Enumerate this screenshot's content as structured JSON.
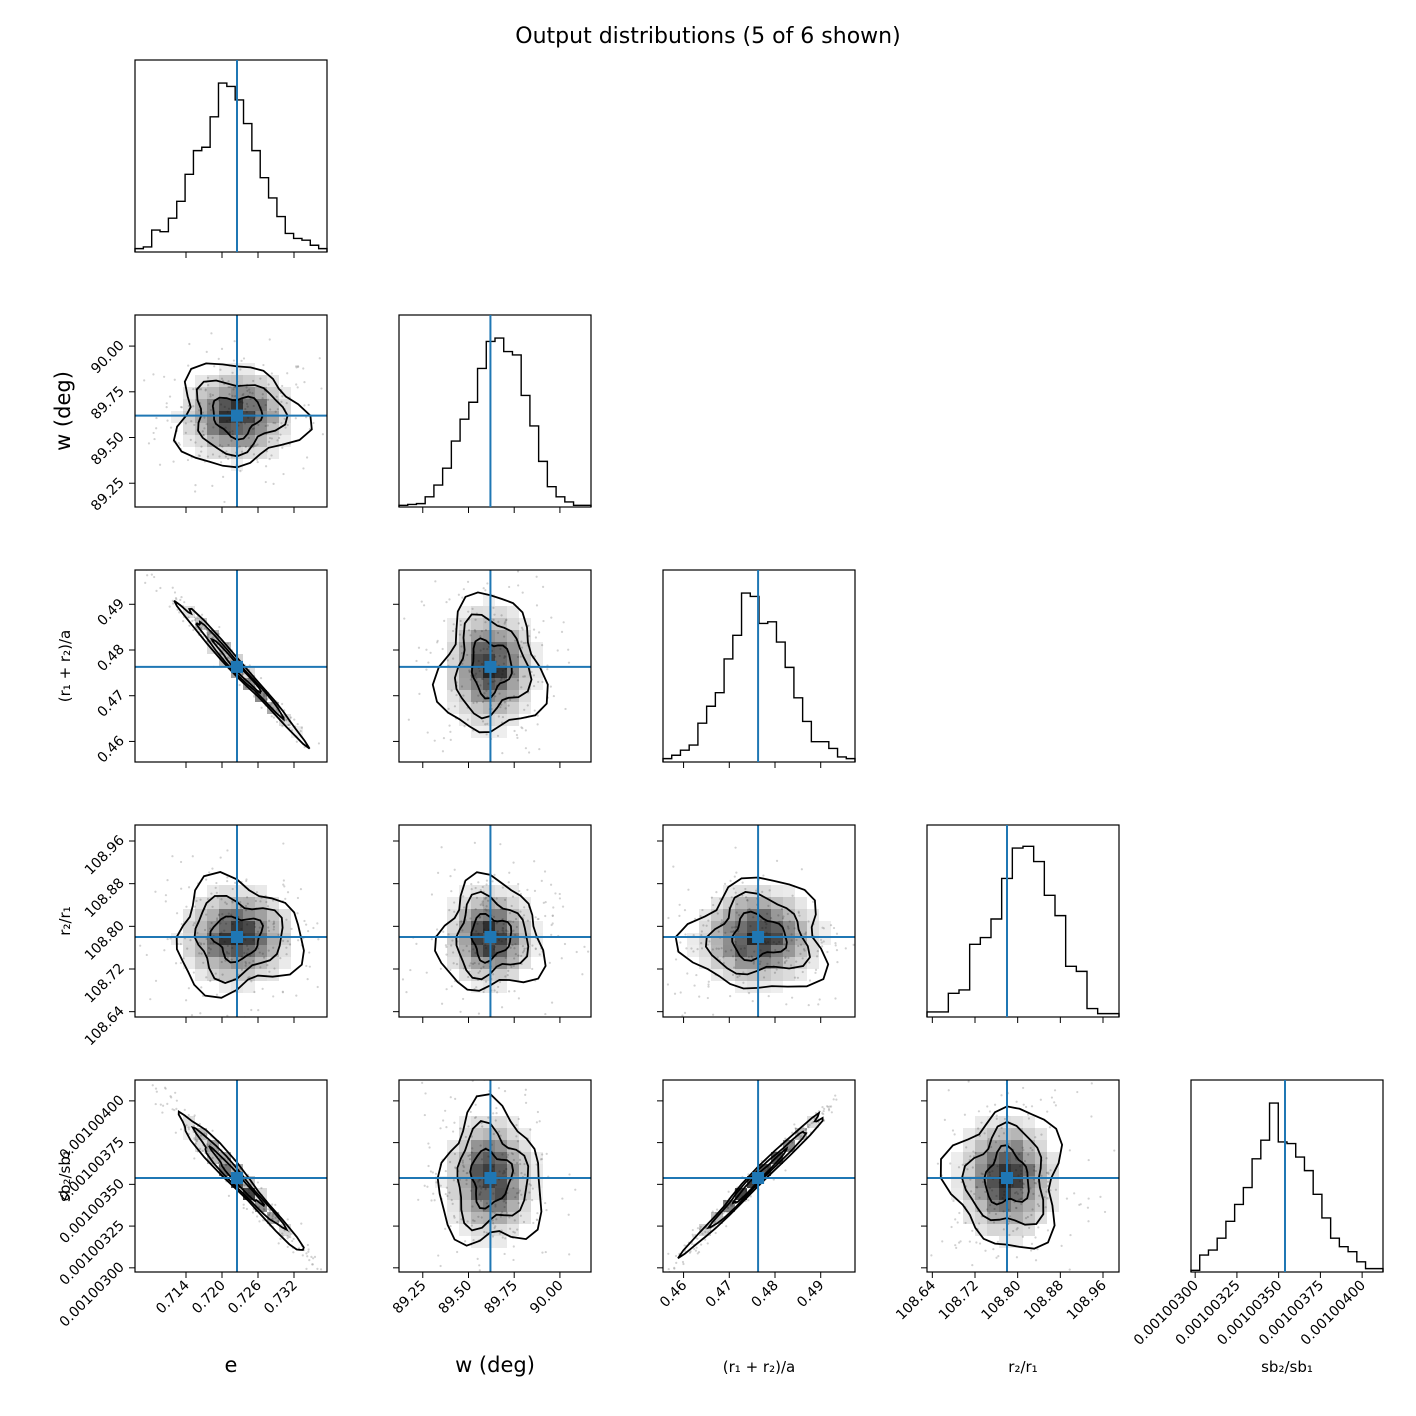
{
  "title": "Output distributions (5 of 6 shown)",
  "colors": {
    "truth_line": "#1f77b4",
    "hist_line": "#000000",
    "contour": "#000000",
    "density": "#000000"
  },
  "chart_data": {
    "type": "corner",
    "title": "Output distributions (5 of 6 shown)",
    "grid": false,
    "parameters": [
      {
        "key": "e",
        "label": "e",
        "ticks": [
          "0.714",
          "0.720",
          "0.726",
          "0.732"
        ],
        "tick_values": [
          0.714,
          0.72,
          0.726,
          0.732
        ],
        "range": [
          0.7055,
          0.7375
        ],
        "truth": 0.7225
      },
      {
        "key": "w",
        "label": "w (deg)",
        "ticks": [
          "89.25",
          "89.50",
          "89.75",
          "90.00"
        ],
        "tick_values": [
          89.25,
          89.5,
          89.75,
          90.0
        ],
        "range": [
          89.12,
          90.17
        ],
        "truth": 89.62
      },
      {
        "key": "r12a",
        "label": "(r₁ + r₂)/a",
        "ticks": [
          "0.46",
          "0.47",
          "0.48",
          "0.49"
        ],
        "tick_values": [
          0.46,
          0.47,
          0.48,
          0.49
        ],
        "range": [
          0.4555,
          0.4975
        ],
        "truth": 0.4763
      },
      {
        "key": "r2r1",
        "label": "r₂/r₁",
        "ticks": [
          "108.64",
          "108.72",
          "108.80",
          "108.88",
          "108.96"
        ],
        "tick_values": [
          108.64,
          108.72,
          108.8,
          108.88,
          108.96
        ],
        "range": [
          108.63,
          108.99
        ],
        "truth": 108.78
      },
      {
        "key": "sb2sb1",
        "label": "sb₂/sb₁",
        "ticks": [
          "0.00100300",
          "0.00100325",
          "0.00100350",
          "0.00100375",
          "0.00100400"
        ],
        "tick_values": [
          0.001003,
          0.00100325,
          0.0010035,
          0.00100375,
          0.001004
        ],
        "range": [
          0.001002975,
          0.001004125
        ],
        "truth": 0.001003538
      }
    ],
    "histograms": [
      {
        "param": "e",
        "heights": [
          0.02,
          0.03,
          0.13,
          0.12,
          0.2,
          0.3,
          0.46,
          0.6,
          0.62,
          0.8,
          1.0,
          0.98,
          0.9,
          0.76,
          0.6,
          0.44,
          0.32,
          0.21,
          0.11,
          0.08,
          0.07,
          0.04,
          0.02
        ]
      },
      {
        "param": "w",
        "heights": [
          0.01,
          0.015,
          0.02,
          0.06,
          0.13,
          0.23,
          0.39,
          0.52,
          0.62,
          0.82,
          0.98,
          1.0,
          0.92,
          0.9,
          0.66,
          0.48,
          0.27,
          0.12,
          0.06,
          0.03,
          0.01,
          0.01
        ]
      },
      {
        "param": "r12a",
        "heights": [
          0.02,
          0.04,
          0.07,
          0.1,
          0.23,
          0.33,
          0.41,
          0.61,
          0.75,
          1.0,
          0.98,
          0.82,
          0.83,
          0.71,
          0.56,
          0.38,
          0.24,
          0.12,
          0.12,
          0.08,
          0.03,
          0.02
        ]
      },
      {
        "param": "r2r1",
        "heights": [
          0.03,
          0.03,
          0.14,
          0.16,
          0.43,
          0.47,
          0.58,
          0.82,
          1.0,
          1.01,
          0.92,
          0.72,
          0.6,
          0.3,
          0.27,
          0.05,
          0.02,
          0.02
        ]
      },
      {
        "param": "sb2sb1",
        "heights": [
          0.01,
          0.1,
          0.13,
          0.2,
          0.3,
          0.4,
          0.5,
          0.67,
          0.78,
          1.0,
          0.77,
          0.76,
          0.68,
          0.6,
          0.46,
          0.32,
          0.2,
          0.15,
          0.12,
          0.06,
          0.02,
          0.02
        ]
      }
    ],
    "pairs": [
      {
        "x": "e",
        "y": "w",
        "correlation": 0.0,
        "sx": 0.0045,
        "sy": 0.12
      },
      {
        "x": "e",
        "y": "r12a",
        "correlation": -0.99,
        "sx": 0.0045,
        "sy": 0.0065
      },
      {
        "x": "w",
        "y": "r12a",
        "correlation": 0.0,
        "sx": 0.12,
        "sy": 0.0065
      },
      {
        "x": "e",
        "y": "r2r1",
        "correlation": 0.0,
        "sx": 0.0045,
        "sy": 0.045
      },
      {
        "x": "w",
        "y": "r2r1",
        "correlation": 0.0,
        "sx": 0.12,
        "sy": 0.045
      },
      {
        "x": "r12a",
        "y": "r2r1",
        "correlation": 0.0,
        "sx": 0.0065,
        "sy": 0.045
      },
      {
        "x": "e",
        "y": "sb2sb1",
        "correlation": -0.98,
        "sx": 0.0045,
        "sy": 1.8e-07
      },
      {
        "x": "w",
        "y": "sb2sb1",
        "correlation": 0.0,
        "sx": 0.12,
        "sy": 1.8e-07
      },
      {
        "x": "r12a",
        "y": "sb2sb1",
        "correlation": 0.99,
        "sx": 0.0065,
        "sy": 1.8e-07
      },
      {
        "x": "r2r1",
        "y": "sb2sb1",
        "correlation": 0.0,
        "sx": 0.045,
        "sy": 1.8e-07
      }
    ]
  }
}
